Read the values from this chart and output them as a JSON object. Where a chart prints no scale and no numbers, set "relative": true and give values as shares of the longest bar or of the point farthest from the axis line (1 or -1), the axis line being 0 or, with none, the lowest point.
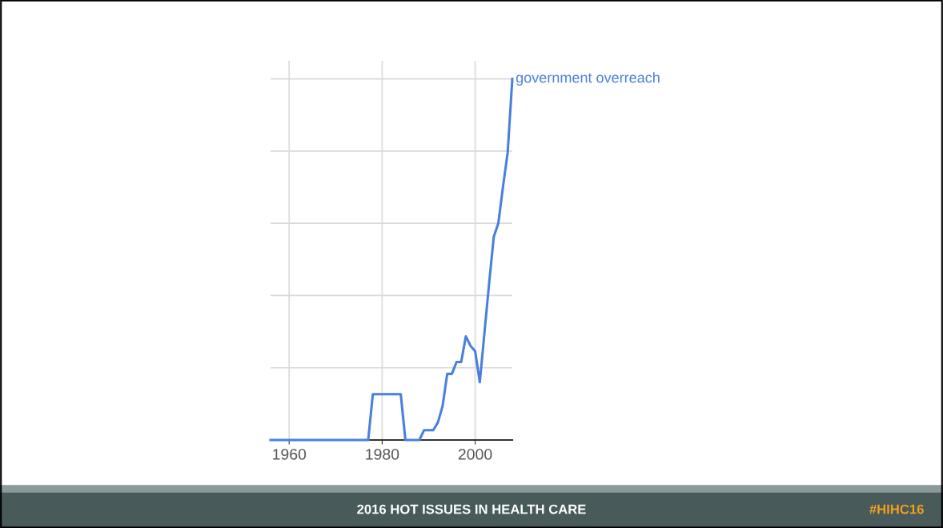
{
  "chart_data": {
    "type": "line",
    "relative": true,
    "x": [
      1956,
      1977,
      1978,
      1984,
      1985,
      1988,
      1989,
      1991,
      1992,
      1993,
      1994,
      1995,
      1996,
      1997,
      1998,
      1999,
      2000,
      2001,
      2002,
      2003,
      2004,
      2005,
      2006,
      2007,
      2008
    ],
    "series": [
      {
        "name": "government overreach",
        "color": "#4a7fe0",
        "values": [
          0,
          0,
          0.127,
          0.127,
          0,
          0,
          0.027,
          0.027,
          0.049,
          0.094,
          0.183,
          0.183,
          0.216,
          0.216,
          0.287,
          0.261,
          0.246,
          0.16,
          0.296,
          0.433,
          0.562,
          0.601,
          0.702,
          0.796,
          1
        ]
      }
    ],
    "xlim": [
      1956,
      2008
    ],
    "xticks": [
      1960,
      1980,
      2000
    ],
    "grid": true,
    "legend": false,
    "annotations": [
      "2016 HOT ISSUES IN HEALTH CARE",
      "#HIHC16"
    ]
  }
}
